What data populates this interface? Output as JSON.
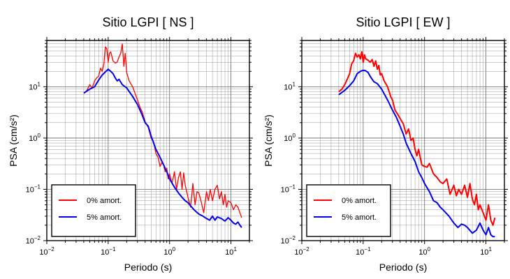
{
  "chart_data": [
    {
      "type": "line",
      "title": "Sitio LGPI [ NS ]",
      "xlabel": "Periodo (s)",
      "ylabel": "PSA (cm/s²)",
      "xscale": "log",
      "yscale": "log",
      "xlim": [
        0.01,
        20
      ],
      "ylim": [
        0.01,
        80
      ],
      "xticks": [
        {
          "base": "10",
          "exp": "−2"
        },
        {
          "base": "10",
          "exp": "−1"
        },
        {
          "base": "10",
          "exp": "0"
        },
        {
          "base": "10",
          "exp": "1"
        }
      ],
      "yticks": [
        {
          "base": "10",
          "exp": "−2"
        },
        {
          "base": "10",
          "exp": "−1"
        },
        {
          "base": "10",
          "exp": "0"
        },
        {
          "base": "10",
          "exp": "1"
        }
      ],
      "grid": true,
      "legend": "bottom-left",
      "series": [
        {
          "name": "0% amort.",
          "color": "#ff0000",
          "x": [
            0.04,
            0.045,
            0.05,
            0.055,
            0.06,
            0.065,
            0.07,
            0.075,
            0.08,
            0.085,
            0.09,
            0.095,
            0.1,
            0.105,
            0.11,
            0.12,
            0.13,
            0.14,
            0.15,
            0.16,
            0.17,
            0.18,
            0.19,
            0.2,
            0.22,
            0.25,
            0.28,
            0.3,
            0.33,
            0.36,
            0.4,
            0.45,
            0.5,
            0.55,
            0.6,
            0.65,
            0.7,
            0.75,
            0.8,
            0.85,
            0.9,
            0.95,
            1.0,
            1.1,
            1.2,
            1.3,
            1.4,
            1.5,
            1.6,
            1.7,
            1.8,
            2.0,
            2.2,
            2.4,
            2.6,
            2.8,
            3.0,
            3.3,
            3.6,
            4.0,
            4.3,
            4.6,
            5.0,
            5.5,
            6.0,
            6.5,
            7.0,
            7.5,
            8.0,
            8.5,
            9.0,
            10.0,
            11.0,
            12.0,
            13.0,
            14.0,
            15.0
          ],
          "y": [
            7.5,
            8.5,
            11.0,
            9.5,
            13.0,
            15.0,
            16.0,
            23.0,
            20.0,
            28.0,
            60.0,
            55.0,
            30.0,
            45.0,
            48.0,
            32.0,
            29.0,
            30.0,
            38.0,
            45.0,
            68.0,
            25.0,
            45.0,
            19.0,
            13.0,
            10.0,
            7.0,
            5.5,
            4.0,
            3.2,
            2.1,
            1.6,
            1.0,
            0.85,
            0.5,
            0.42,
            0.28,
            0.33,
            0.3,
            0.22,
            0.26,
            0.16,
            0.2,
            0.13,
            0.22,
            0.1,
            0.17,
            0.22,
            0.1,
            0.21,
            0.12,
            0.07,
            0.045,
            0.13,
            0.05,
            0.09,
            0.085,
            0.055,
            0.035,
            0.09,
            0.06,
            0.1,
            0.06,
            0.1,
            0.12,
            0.065,
            0.09,
            0.05,
            0.08,
            0.045,
            0.06,
            0.055,
            0.04,
            0.05,
            0.045,
            0.035,
            0.028
          ]
        },
        {
          "name": "5% amort.",
          "color": "#0000ee",
          "x": [
            0.04,
            0.05,
            0.06,
            0.07,
            0.08,
            0.09,
            0.1,
            0.11,
            0.12,
            0.13,
            0.14,
            0.15,
            0.17,
            0.2,
            0.25,
            0.3,
            0.35,
            0.4,
            0.45,
            0.5,
            0.55,
            0.6,
            0.7,
            0.8,
            0.9,
            1.0,
            1.2,
            1.4,
            1.6,
            1.8,
            2.0,
            2.5,
            3.0,
            3.5,
            4.0,
            4.5,
            5.0,
            5.5,
            6.0,
            7.0,
            8.0,
            9.0,
            10.0,
            11.0,
            12.0,
            13.0,
            14.0,
            15.0
          ],
          "y": [
            7.5,
            9.0,
            10.0,
            13.5,
            17.0,
            19.5,
            22.0,
            20.0,
            18.0,
            15.0,
            13.0,
            14.0,
            11.0,
            9.5,
            6.5,
            4.5,
            3.0,
            2.0,
            1.7,
            1.1,
            0.8,
            0.6,
            0.42,
            0.3,
            0.22,
            0.16,
            0.11,
            0.085,
            0.07,
            0.06,
            0.055,
            0.04,
            0.033,
            0.03,
            0.027,
            0.025,
            0.03,
            0.025,
            0.029,
            0.027,
            0.024,
            0.028,
            0.025,
            0.022,
            0.021,
            0.023,
            0.02,
            0.018
          ]
        }
      ]
    },
    {
      "type": "line",
      "title": "Sitio LGPI [ EW ]",
      "xlabel": "Periodo (s)",
      "ylabel": "PSA (cm/s²)",
      "xscale": "log",
      "yscale": "log",
      "xlim": [
        0.01,
        20
      ],
      "ylim": [
        0.01,
        80
      ],
      "xticks": [
        {
          "base": "10",
          "exp": "−2"
        },
        {
          "base": "10",
          "exp": "−1"
        },
        {
          "base": "10",
          "exp": "0"
        },
        {
          "base": "10",
          "exp": "1"
        }
      ],
      "yticks": [
        {
          "base": "10",
          "exp": "−2"
        },
        {
          "base": "10",
          "exp": "−1"
        },
        {
          "base": "10",
          "exp": "0"
        },
        {
          "base": "10",
          "exp": "1"
        }
      ],
      "grid": true,
      "legend": "bottom-left",
      "series": [
        {
          "name": "0% amort.",
          "color": "#ff0000",
          "x": [
            0.04,
            0.045,
            0.05,
            0.055,
            0.06,
            0.065,
            0.07,
            0.075,
            0.08,
            0.085,
            0.09,
            0.095,
            0.1,
            0.105,
            0.11,
            0.12,
            0.13,
            0.14,
            0.15,
            0.16,
            0.17,
            0.18,
            0.19,
            0.2,
            0.22,
            0.25,
            0.28,
            0.3,
            0.33,
            0.36,
            0.4,
            0.45,
            0.5,
            0.55,
            0.6,
            0.65,
            0.7,
            0.75,
            0.8,
            0.9,
            1.0,
            1.1,
            1.2,
            1.4,
            1.6,
            1.8,
            2.0,
            2.3,
            2.6,
            3.0,
            3.3,
            3.6,
            4.0,
            4.5,
            5.0,
            5.5,
            6.0,
            6.5,
            7.0,
            7.5,
            8.0,
            9.0,
            10.0,
            11.0,
            12.0,
            13.0,
            14.0
          ],
          "y": [
            8.0,
            9.0,
            11.0,
            14.0,
            18.0,
            28.0,
            32.0,
            45.0,
            38.0,
            42.0,
            35.0,
            48.0,
            30.0,
            42.0,
            35.0,
            33.0,
            30.0,
            34.0,
            25.0,
            32.0,
            22.0,
            26.0,
            17.0,
            18.0,
            13.0,
            10.0,
            6.5,
            5.5,
            3.5,
            3.0,
            2.4,
            1.9,
            1.2,
            1.5,
            0.9,
            1.0,
            0.6,
            0.45,
            0.6,
            0.3,
            0.28,
            0.27,
            0.32,
            0.2,
            0.17,
            0.14,
            0.13,
            0.16,
            0.08,
            0.12,
            0.075,
            0.1,
            0.08,
            0.12,
            0.07,
            0.13,
            0.065,
            0.05,
            0.08,
            0.04,
            0.05,
            0.035,
            0.025,
            0.05,
            0.025,
            0.02,
            0.028
          ]
        },
        {
          "name": "5% amort.",
          "color": "#0000ee",
          "x": [
            0.04,
            0.05,
            0.06,
            0.07,
            0.08,
            0.09,
            0.1,
            0.11,
            0.12,
            0.13,
            0.14,
            0.15,
            0.17,
            0.2,
            0.25,
            0.3,
            0.35,
            0.4,
            0.45,
            0.5,
            0.6,
            0.7,
            0.8,
            0.9,
            1.0,
            1.2,
            1.4,
            1.6,
            1.8,
            2.0,
            2.5,
            3.0,
            3.5,
            4.0,
            4.5,
            5.0,
            6.0,
            7.0,
            8.0,
            9.0,
            10.0,
            11.0,
            12.0,
            13.0,
            14.0
          ],
          "y": [
            7.0,
            8.5,
            10.5,
            13.0,
            18.0,
            20.0,
            21.0,
            20.5,
            19.0,
            16.0,
            14.0,
            12.5,
            11.5,
            9.0,
            5.5,
            3.5,
            2.5,
            1.7,
            1.2,
            0.8,
            0.5,
            0.35,
            0.22,
            0.17,
            0.13,
            0.09,
            0.06,
            0.055,
            0.045,
            0.04,
            0.03,
            0.022,
            0.018,
            0.021,
            0.02,
            0.018,
            0.014,
            0.016,
            0.022,
            0.016,
            0.013,
            0.018,
            0.013,
            0.012,
            0.012
          ]
        }
      ]
    }
  ]
}
